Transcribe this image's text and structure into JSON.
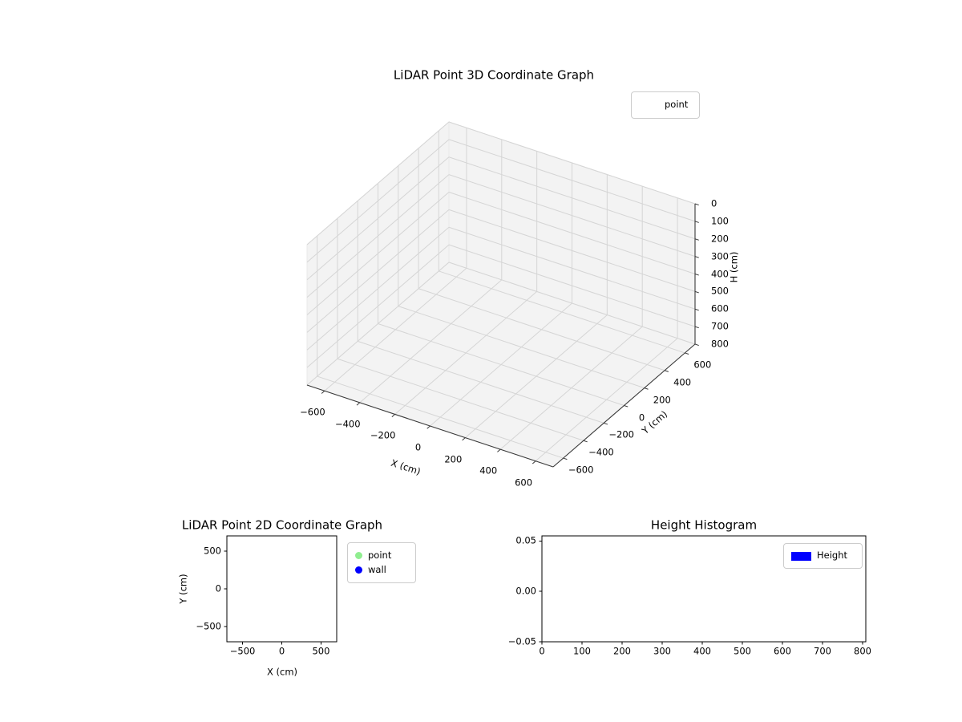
{
  "figure": {
    "background": "#ffffff"
  },
  "chart_data": [
    {
      "type": "scatter",
      "projection": "3d",
      "title": "LiDAR Point 3D Coordinate Graph",
      "xlabel": "X (cm)",
      "ylabel": "Y (cm)",
      "zlabel": "H (cm)",
      "xlim": [
        -700,
        700
      ],
      "ylim": [
        -700,
        700
      ],
      "zlim": [
        0,
        800
      ],
      "z_axis_inverted": true,
      "xticks": [
        -600,
        -400,
        -200,
        0,
        200,
        400,
        600
      ],
      "yticks": [
        -600,
        -400,
        -200,
        0,
        200,
        400,
        600
      ],
      "zticks": [
        0,
        100,
        200,
        300,
        400,
        500,
        600,
        700,
        800
      ],
      "grid": true,
      "legend": {
        "position": "upper right",
        "entries": [
          {
            "label": "point",
            "marker": "none"
          }
        ]
      },
      "series": [
        {
          "name": "point",
          "points": []
        }
      ]
    },
    {
      "type": "scatter",
      "title": "LiDAR Point 2D Coordinate Graph",
      "xlabel": "X (cm)",
      "ylabel": "Y (cm)",
      "xlim": [
        -700,
        700
      ],
      "ylim": [
        -700,
        700
      ],
      "xticks": [
        -500,
        0,
        500
      ],
      "yticks": [
        -500,
        0,
        500
      ],
      "grid": false,
      "legend": {
        "position": "right of axes",
        "entries": [
          {
            "label": "point",
            "marker": "dot",
            "color": "#90ee90"
          },
          {
            "label": "wall",
            "marker": "dot",
            "color": "#0000ff"
          }
        ]
      },
      "series": [
        {
          "name": "point",
          "color": "#90ee90",
          "x": [],
          "y": []
        },
        {
          "name": "wall",
          "color": "#0000ff",
          "x": [],
          "y": []
        }
      ]
    },
    {
      "type": "histogram",
      "title": "Height Histogram",
      "xlim": [
        0,
        808
      ],
      "ylim": [
        -0.05,
        0.055
      ],
      "xticks": [
        0,
        100,
        200,
        300,
        400,
        500,
        600,
        700,
        800
      ],
      "yticks": [
        -0.05,
        0,
        0.05
      ],
      "ytick_labels": [
        "−0.05",
        "0.00",
        "0.05"
      ],
      "grid": false,
      "legend": {
        "position": "upper right",
        "entries": [
          {
            "label": "Height",
            "marker": "rect",
            "color": "#0000ff"
          }
        ]
      },
      "values": []
    }
  ]
}
